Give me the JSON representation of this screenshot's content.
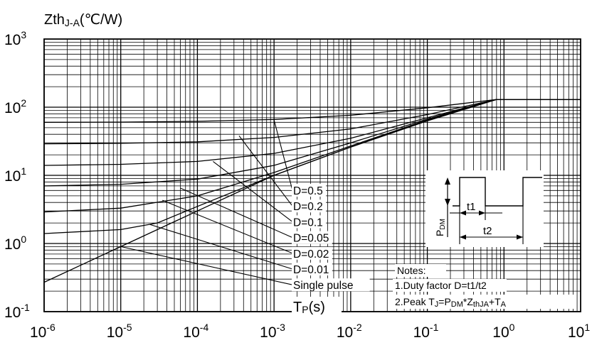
{
  "chart_data": {
    "type": "line",
    "x_scale": "log",
    "y_scale": "log",
    "xlim": [
      1e-06,
      10
    ],
    "ylim": [
      0.1,
      1000
    ],
    "x_ticks": [
      {
        "base": "10",
        "exp": "-6"
      },
      {
        "base": "10",
        "exp": "-5"
      },
      {
        "base": "10",
        "exp": "-4"
      },
      {
        "base": "10",
        "exp": "-3"
      },
      {
        "base": "10",
        "exp": "-2"
      },
      {
        "base": "10",
        "exp": "-1"
      },
      {
        "base": "10",
        "exp": "0"
      },
      {
        "base": "10",
        "exp": "1"
      }
    ],
    "y_ticks": [
      {
        "base": "10",
        "exp": "-1"
      },
      {
        "base": "10",
        "exp": "0"
      },
      {
        "base": "10",
        "exp": "1"
      },
      {
        "base": "10",
        "exp": "2"
      },
      {
        "base": "10",
        "exp": "3"
      }
    ],
    "ylabel": {
      "main": "Zth",
      "sub": "J-A",
      "unit": "(℃/W)"
    },
    "xlabel": {
      "main": "T",
      "sub": "P",
      "unit": "(s)"
    },
    "grid": true,
    "series": [
      {
        "name": "D=0.5",
        "x": [
          1e-06,
          1e-05,
          0.0001,
          0.001,
          0.01,
          0.1,
          0.8,
          10
        ],
        "y": [
          60,
          60.5,
          62,
          66,
          76,
          98,
          130,
          130
        ]
      },
      {
        "name": "D=0.2",
        "x": [
          1e-06,
          1e-05,
          0.0001,
          0.001,
          0.01,
          0.1,
          0.8,
          10
        ],
        "y": [
          29,
          29.5,
          31,
          36,
          48,
          78,
          130,
          130
        ]
      },
      {
        "name": "D=0.1",
        "x": [
          1e-06,
          1e-05,
          0.0001,
          0.001,
          0.01,
          0.1,
          0.8,
          10
        ],
        "y": [
          14,
          14.5,
          16,
          21,
          35,
          70,
          130,
          130
        ]
      },
      {
        "name": "D=0.05",
        "x": [
          1e-06,
          1e-05,
          0.0001,
          0.001,
          0.01,
          0.1,
          0.8,
          10
        ],
        "y": [
          7,
          7.4,
          8.8,
          14,
          30,
          67,
          130,
          130
        ]
      },
      {
        "name": "D=0.02",
        "x": [
          1e-06,
          1e-05,
          0.0001,
          0.001,
          0.01,
          0.1,
          0.8,
          10
        ],
        "y": [
          2.9,
          3.3,
          5,
          11,
          27,
          65,
          130,
          130
        ]
      },
      {
        "name": "D=0.01",
        "x": [
          1e-06,
          1e-05,
          3e-05,
          0.0001,
          0.001,
          0.01,
          0.1,
          0.8,
          10
        ],
        "y": [
          1.4,
          1.6,
          2,
          3.5,
          10,
          26,
          64,
          130,
          130
        ]
      },
      {
        "name": "Single pulse",
        "x": [
          1e-06,
          1e-05,
          0.0001,
          0.001,
          0.01,
          0.1,
          0.8,
          10
        ],
        "y": [
          0.27,
          0.9,
          3,
          10,
          26,
          63,
          130,
          130
        ]
      }
    ],
    "leaders": [
      {
        "label": "D=0.5",
        "from": [
          0.001,
          65
        ]
      },
      {
        "label": "D=0.2",
        "from": [
          0.00035,
          38
        ]
      },
      {
        "label": "D=0.1",
        "from": [
          0.00016,
          16
        ]
      },
      {
        "label": "D=0.05",
        "from": [
          6e-05,
          6.5
        ]
      },
      {
        "label": "D=0.02",
        "from": [
          3.5e-05,
          4.3
        ]
      },
      {
        "label": "D=0.01",
        "from": [
          2.4e-05,
          1.9
        ]
      },
      {
        "label": "Single pulse",
        "from": [
          1e-05,
          0.9
        ]
      }
    ],
    "notes": {
      "title": "Notes:",
      "line1": "1.Duty factor D=t1/t2",
      "line2": {
        "pre": "2.Peak T",
        "tj_sub": "J",
        "eq": "=P",
        "pdm_sub": "DM",
        "mul": "*Z",
        "zth_sub": "thJA",
        "plus": "+T",
        "ta_sub": "A"
      }
    },
    "inset": {
      "pdm_main": "P",
      "pdm_sub": "DM",
      "t1": "t1",
      "t2": "t2"
    }
  }
}
